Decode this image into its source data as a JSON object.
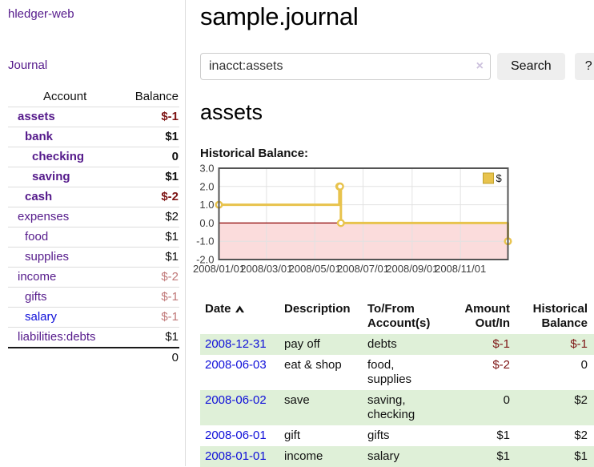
{
  "app": {
    "brand": "hledger-web",
    "nav_journal": "Journal"
  },
  "colors": {
    "link_purple": "#551A8B",
    "link_blue": "#0f0fd9",
    "negative_strong": "#7d1414",
    "negative_soft": "#c07878",
    "row_highlight_green": "#dff0d8",
    "chart_line_yellow": "#e8c34d",
    "chart_negative_bg": "#fbdcdc",
    "chart_zero_line": "#8b0000",
    "chart_border": "#545454",
    "grid_line": "#e2e2e2"
  },
  "sidebar": {
    "headers": {
      "account": "Account",
      "balance": "Balance"
    },
    "rows": [
      {
        "account": "assets",
        "balance": "$-1",
        "depth": 0,
        "bold": true,
        "amount_style": "neg-strong",
        "link_style": "purple"
      },
      {
        "account": "bank",
        "balance": "$1",
        "depth": 1,
        "bold": true,
        "amount_style": "pos",
        "link_style": "purple"
      },
      {
        "account": "checking",
        "balance": "0",
        "depth": 2,
        "bold": true,
        "amount_style": "pos",
        "link_style": "purple"
      },
      {
        "account": "saving",
        "balance": "$1",
        "depth": 2,
        "bold": true,
        "amount_style": "pos",
        "link_style": "purple"
      },
      {
        "account": "cash",
        "balance": "$-2",
        "depth": 1,
        "bold": true,
        "amount_style": "neg-strong",
        "link_style": "purple"
      },
      {
        "account": "expenses",
        "balance": "$2",
        "depth": 0,
        "bold": false,
        "amount_style": "pos",
        "link_style": "purple"
      },
      {
        "account": "food",
        "balance": "$1",
        "depth": 1,
        "bold": false,
        "amount_style": "pos",
        "link_style": "purple"
      },
      {
        "account": "supplies",
        "balance": "$1",
        "depth": 1,
        "bold": false,
        "amount_style": "pos",
        "link_style": "purple"
      },
      {
        "account": "income",
        "balance": "$-2",
        "depth": 0,
        "bold": false,
        "amount_style": "neg-soft",
        "link_style": "purple"
      },
      {
        "account": "gifts",
        "balance": "$-1",
        "depth": 1,
        "bold": false,
        "amount_style": "neg-soft",
        "link_style": "purple"
      },
      {
        "account": "salary",
        "balance": "$-1",
        "depth": 1,
        "bold": false,
        "amount_style": "neg-soft",
        "link_style": "blue"
      },
      {
        "account": "liabilities:debts",
        "balance": "$1",
        "depth": 0,
        "bold": false,
        "amount_style": "pos",
        "link_style": "purple"
      }
    ],
    "total": "0"
  },
  "main": {
    "title": "sample.journal",
    "search": {
      "value": "inacct:assets",
      "clear_icon": "×",
      "button_label": "Search",
      "help_label": "?"
    },
    "account_heading": "assets",
    "chart_label": "Historical Balance:"
  },
  "chart_data": {
    "type": "line",
    "style": "step-after",
    "title": "Historical Balance",
    "series": [
      {
        "name": "$",
        "color": "#e8c34d",
        "points": [
          [
            "2008-01-01",
            1
          ],
          [
            "2008-06-01",
            2
          ],
          [
            "2008-06-02",
            2
          ],
          [
            "2008-06-03",
            0
          ],
          [
            "2008-12-31",
            -1
          ]
        ]
      }
    ],
    "x_range": [
      "2008-01-01",
      "2008-12-31"
    ],
    "y_range": [
      -2,
      3
    ],
    "y_ticks": [
      "3.0",
      "2.0",
      "1.0",
      "0.0",
      "-1.0",
      "-2.0"
    ],
    "x_ticks": [
      "2008/01/01",
      "2008/03/01",
      "2008/05/01",
      "2008/07/01",
      "2008/09/01",
      "2008/11/01"
    ],
    "grid": true,
    "legend": {
      "label": "$",
      "position": "top-right"
    },
    "negative_region_shaded": true
  },
  "table": {
    "headers": {
      "date": "Date",
      "description": "Description",
      "tofrom": "To/From Account(s)",
      "amount": "Amount Out/In",
      "balance": "Historical Balance"
    },
    "sort": "date ascending",
    "rows": [
      {
        "date": "2008-12-31",
        "description": "pay off",
        "accounts": "debts",
        "amount": "$-1",
        "balance": "$-1",
        "amount_style": "neg",
        "balance_style": "neg",
        "highlight": true
      },
      {
        "date": "2008-06-03",
        "description": "eat & shop",
        "accounts": "food, supplies",
        "amount": "$-2",
        "balance": "0",
        "amount_style": "neg",
        "balance_style": "pos",
        "highlight": false
      },
      {
        "date": "2008-06-02",
        "description": "save",
        "accounts": "saving, checking",
        "amount": "0",
        "balance": "$2",
        "amount_style": "pos",
        "balance_style": "pos",
        "highlight": true
      },
      {
        "date": "2008-06-01",
        "description": "gift",
        "accounts": "gifts",
        "amount": "$1",
        "balance": "$2",
        "amount_style": "pos",
        "balance_style": "pos",
        "highlight": false
      },
      {
        "date": "2008-01-01",
        "description": "income",
        "accounts": "salary",
        "amount": "$1",
        "balance": "$1",
        "amount_style": "pos",
        "balance_style": "pos",
        "highlight": true
      }
    ]
  }
}
